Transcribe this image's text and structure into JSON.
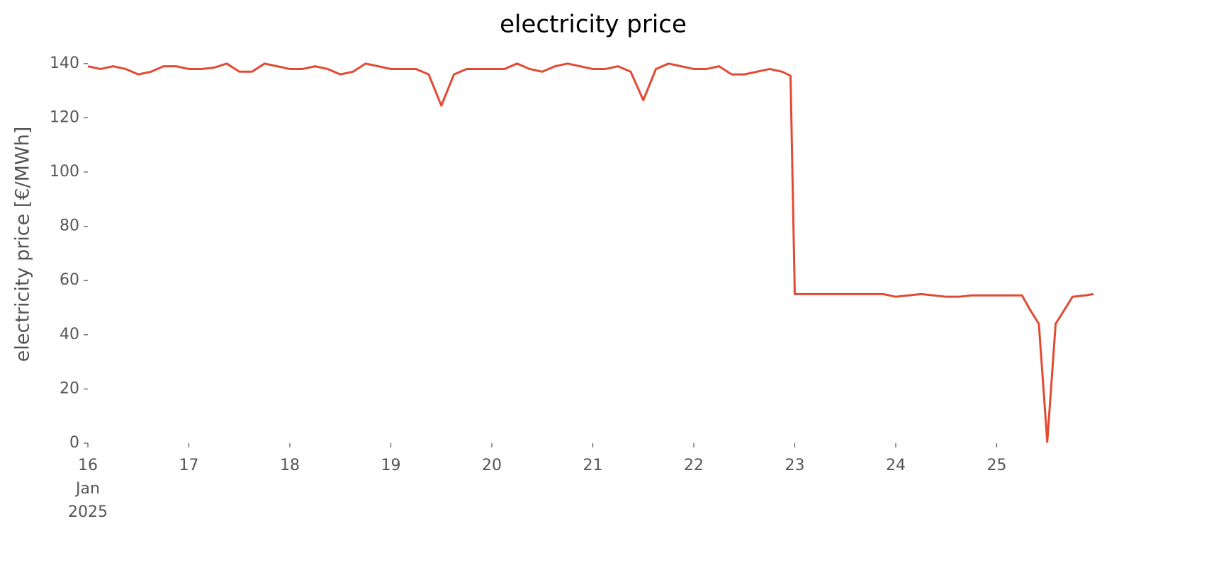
{
  "chart_data": {
    "type": "line",
    "title": "electricity price",
    "ylabel": "electricity price [€/MWh]",
    "color": "#E24A33",
    "x": [
      16.0,
      16.125,
      16.25,
      16.375,
      16.5,
      16.625,
      16.75,
      16.875,
      17.0,
      17.125,
      17.25,
      17.375,
      17.5,
      17.625,
      17.75,
      17.875,
      18.0,
      18.125,
      18.25,
      18.375,
      18.5,
      18.625,
      18.75,
      18.875,
      19.0,
      19.125,
      19.25,
      19.375,
      19.5,
      19.625,
      19.75,
      19.875,
      20.0,
      20.125,
      20.25,
      20.375,
      20.5,
      20.625,
      20.75,
      20.875,
      21.0,
      21.125,
      21.25,
      21.375,
      21.5,
      21.625,
      21.75,
      21.875,
      22.0,
      22.125,
      22.25,
      22.375,
      22.5,
      22.625,
      22.75,
      22.875,
      22.958,
      23.0,
      23.125,
      23.25,
      23.375,
      23.5,
      23.625,
      23.75,
      23.875,
      24.0,
      24.125,
      24.25,
      24.375,
      24.5,
      24.625,
      24.75,
      24.875,
      25.0,
      25.125,
      25.25,
      25.333,
      25.417,
      25.5,
      25.583,
      25.667,
      25.75,
      25.875,
      25.958
    ],
    "values": [
      139,
      138,
      139,
      138,
      136,
      137,
      139,
      139,
      138,
      138,
      138.5,
      140,
      137,
      137,
      140,
      139,
      138,
      138,
      139,
      138,
      136,
      137,
      140,
      139,
      138,
      138,
      138,
      136,
      124.5,
      136,
      138,
      138,
      138,
      138,
      140,
      138,
      137,
      139,
      140,
      139,
      138,
      138,
      139,
      137,
      126.5,
      138,
      140,
      139,
      138,
      138,
      139,
      136,
      136,
      137,
      138,
      137,
      135.5,
      55,
      55,
      55,
      55,
      55,
      55,
      55,
      55,
      54,
      54.5,
      55,
      54.5,
      54,
      54,
      54.5,
      54.5,
      54.5,
      54.5,
      54.5,
      49,
      44,
      0.5,
      44,
      49,
      54,
      54.5,
      55
    ],
    "xlim": [
      16,
      26
    ],
    "xticks": [
      {
        "value": 16,
        "label": "16 Jan 2025"
      },
      17,
      18,
      19,
      20,
      21,
      22,
      23,
      24,
      25
    ],
    "ylim": [
      0,
      147
    ],
    "yticks": [
      0,
      20,
      40,
      60,
      80,
      100,
      120,
      140
    ],
    "grid": false
  }
}
